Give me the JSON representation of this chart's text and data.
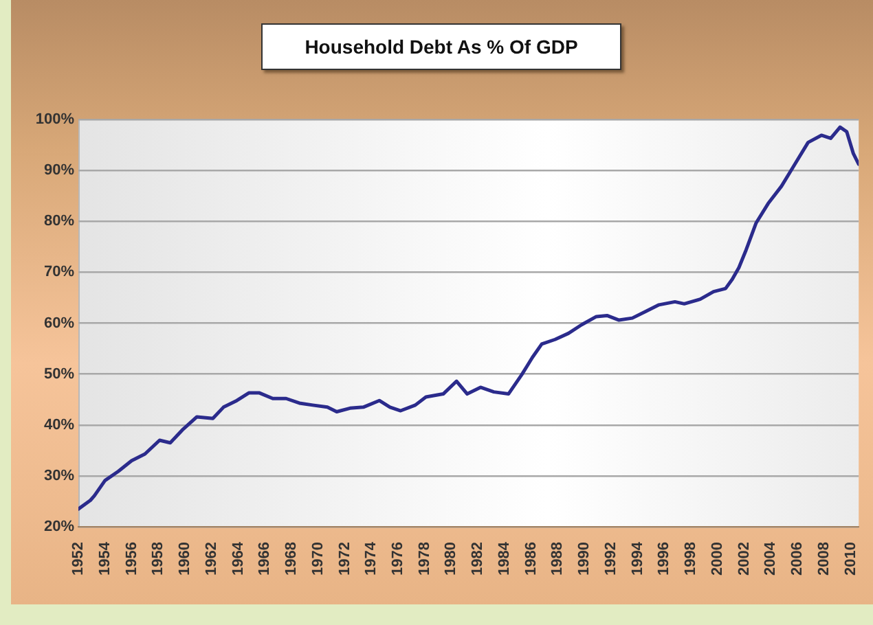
{
  "chart_data": {
    "type": "line",
    "title": "Household Debt As % Of GDP",
    "x": [
      1952.0,
      1952.9,
      1953.2,
      1954.0,
      1955.0,
      1956.0,
      1957.0,
      1958.1,
      1958.9,
      1959.8,
      1960.9,
      1962.1,
      1962.9,
      1963.9,
      1964.8,
      1965.6,
      1966.6,
      1967.6,
      1968.6,
      1969.6,
      1970.7,
      1971.4,
      1972.4,
      1973.4,
      1974.6,
      1975.4,
      1976.2,
      1977.3,
      1978.1,
      1979.4,
      1980.4,
      1981.2,
      1982.2,
      1983.2,
      1984.3,
      1985.3,
      1986.1,
      1986.8,
      1987.8,
      1988.8,
      1989.8,
      1990.9,
      1991.7,
      1992.6,
      1993.6,
      1994.6,
      1995.6,
      1996.8,
      1997.5,
      1998.7,
      1999.7,
      2000.6,
      2001.1,
      2001.6,
      2002.1,
      2002.9,
      2003.8,
      2004.8,
      2005.8,
      2006.8,
      2007.8,
      2008.5,
      2009.2,
      2009.7,
      2010.2,
      2010.6
    ],
    "series": [
      {
        "color": "#2b2b8c",
        "values": [
          23.5,
          25.2,
          26.1,
          29.1,
          30.9,
          33.0,
          34.3,
          37.0,
          36.5,
          39.0,
          41.6,
          41.3,
          43.5,
          44.8,
          46.3,
          46.3,
          45.2,
          45.2,
          44.3,
          43.9,
          43.5,
          42.6,
          43.3,
          43.5,
          44.8,
          43.5,
          42.8,
          43.9,
          45.5,
          46.1,
          48.6,
          46.1,
          47.4,
          46.5,
          46.1,
          49.9,
          53.3,
          55.9,
          56.8,
          58.0,
          59.7,
          61.3,
          61.5,
          60.6,
          61.0,
          62.3,
          63.6,
          64.2,
          63.8,
          64.7,
          66.2,
          66.8,
          68.6,
          70.9,
          74.1,
          79.7,
          83.5,
          86.9,
          91.2,
          95.5,
          96.9,
          96.3,
          98.5,
          97.6,
          93.3,
          91.2
        ]
      }
    ],
    "xlim": [
      1952,
      2010.6
    ],
    "xticks": [
      1952,
      1954,
      1956,
      1958,
      1960,
      1962,
      1964,
      1966,
      1968,
      1970,
      1972,
      1974,
      1976,
      1978,
      1980,
      1982,
      1984,
      1986,
      1988,
      1990,
      1992,
      1994,
      1996,
      1998,
      2000,
      2002,
      2004,
      2006,
      2008,
      2010
    ],
    "ylim": [
      20,
      100
    ],
    "yticks": [
      {
        "value": 20,
        "label": "20%"
      },
      {
        "value": 30,
        "label": "30%"
      },
      {
        "value": 40,
        "label": "40%"
      },
      {
        "value": 50,
        "label": "50%"
      },
      {
        "value": 60,
        "label": "60%"
      },
      {
        "value": 70,
        "label": "70%"
      },
      {
        "value": 80,
        "label": "80%"
      },
      {
        "value": 90,
        "label": "90%"
      },
      {
        "value": 100,
        "label": "100%"
      }
    ],
    "grid": "y",
    "legend": false,
    "marker": "none",
    "line_style": "solid"
  }
}
